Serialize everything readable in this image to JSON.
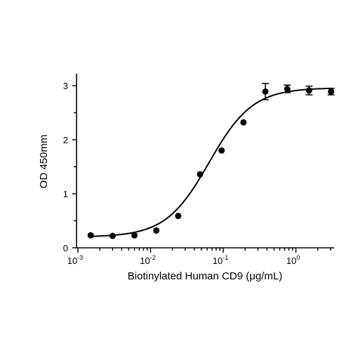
{
  "chart_data": {
    "type": "scatter",
    "title": "",
    "xlabel": "Biotinylated Human CD9 (μg/mL)",
    "ylabel": "OD 450mm",
    "x_scale": "log",
    "xlim": [
      0.001,
      4
    ],
    "ylim": [
      0,
      3.2
    ],
    "grid": false,
    "legend": "none",
    "x_ticks": [
      {
        "value": 0.001,
        "base": "10",
        "exp": "-3"
      },
      {
        "value": 0.01,
        "base": "10",
        "exp": "-2"
      },
      {
        "value": 0.1,
        "base": "10",
        "exp": "-1"
      },
      {
        "value": 1,
        "base": "10",
        "exp": "0"
      }
    ],
    "y_ticks": [
      {
        "value": 0,
        "label": "0"
      },
      {
        "value": 1,
        "label": "1"
      },
      {
        "value": 2,
        "label": "2"
      },
      {
        "value": 3,
        "label": "3"
      }
    ],
    "series": [
      {
        "x": [
          0.0015,
          0.003,
          0.006,
          0.012,
          0.024,
          0.048,
          0.095,
          0.19,
          0.38,
          0.76,
          1.52,
          3.05
        ],
        "y": [
          0.23,
          0.22,
          0.23,
          0.32,
          0.59,
          1.36,
          1.8,
          2.32,
          2.89,
          2.94,
          2.91,
          2.89
        ],
        "error": [
          0.02,
          0.02,
          0.02,
          0.02,
          0.02,
          0.02,
          0.03,
          0.03,
          0.15,
          0.07,
          0.08,
          0.06
        ]
      }
    ],
    "fit_curve": {
      "model": "4PL",
      "bottom": 0.2,
      "top": 2.96,
      "ec50": 0.064,
      "hill": 1.45
    }
  }
}
